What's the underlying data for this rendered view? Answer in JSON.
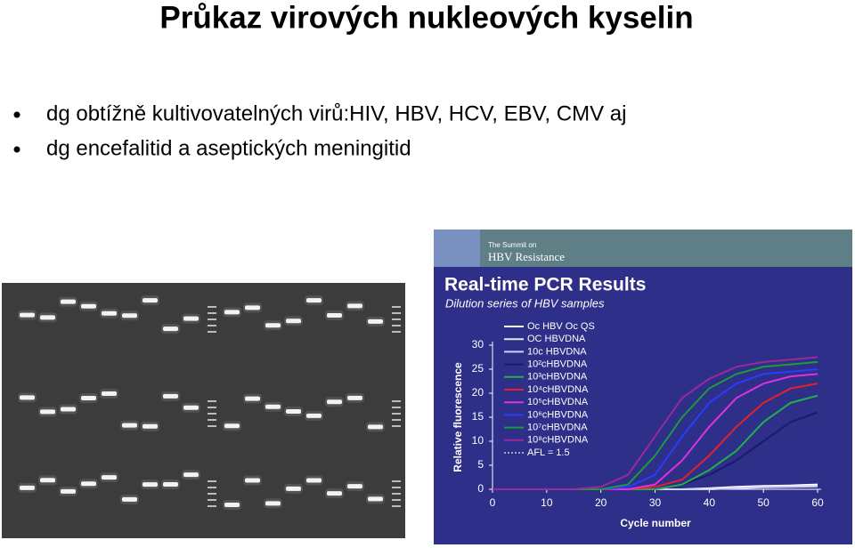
{
  "slide": {
    "title": "Průkaz virových nukleových kyselin",
    "bullets": [
      "dg obtížně kultivovatelných virů:HIV, HBV, HCV, EBV, CMV aj",
      "dg encefalitid a aseptických meningitid"
    ]
  },
  "banner": {
    "line1": "The Summit on",
    "line2": "HBV Resistance"
  },
  "chart_data": {
    "type": "line",
    "title": "Real-time PCR Results",
    "subtitle": "Dilution series of HBV samples",
    "x_label": "Cycle number",
    "y_label": "Relative fluorescence",
    "x": [
      0,
      5,
      10,
      15,
      20,
      25,
      30,
      35,
      40,
      45,
      50,
      55,
      60
    ],
    "xlim": [
      0,
      60
    ],
    "xticks": [
      0,
      10,
      20,
      30,
      40,
      50,
      60
    ],
    "ylim": [
      0,
      30
    ],
    "yticks": [
      0,
      5,
      10,
      15,
      20,
      25,
      30
    ],
    "background": "#2d2f88",
    "series": [
      {
        "name": "Oc HBV Oc QS",
        "color": "#ffffff",
        "values": [
          0,
          0,
          0,
          0,
          0,
          0,
          0,
          0,
          0.2,
          0.5,
          0.7,
          0.8,
          1
        ]
      },
      {
        "name": "OC HBVDNA",
        "color": "#e8e8e8",
        "values": [
          0,
          0,
          0,
          0,
          0,
          0,
          0,
          0,
          0,
          0.3,
          0.5,
          0.6,
          0.8
        ]
      },
      {
        "name": "10c HBVDNA",
        "color": "#d0d0ff",
        "values": [
          0,
          0,
          0,
          0,
          0,
          0,
          0,
          0,
          0,
          0.2,
          0.4,
          0.5,
          0.6
        ]
      },
      {
        "name": "10²cHBVDNA",
        "color": "#1a1a6e",
        "values": [
          0,
          0,
          0,
          0,
          0,
          0,
          0,
          1,
          3,
          6,
          10,
          14,
          16
        ]
      },
      {
        "name": "10³cHBVDNA",
        "color": "#22b04a",
        "values": [
          0,
          0,
          0,
          0,
          0,
          0,
          0,
          1,
          4,
          8,
          14,
          18,
          19.5
        ]
      },
      {
        "name": "10⁴cHBVDNA",
        "color": "#e8202a",
        "values": [
          0,
          0,
          0,
          0,
          0,
          0,
          0.5,
          2,
          7,
          13,
          18,
          21,
          22
        ]
      },
      {
        "name": "10⁵cHBVDNA",
        "color": "#e030e0",
        "values": [
          0,
          0,
          0,
          0,
          0,
          0,
          1,
          6,
          13,
          19,
          22,
          23.5,
          24
        ]
      },
      {
        "name": "10⁶cHBVDNA",
        "color": "#2a3cff",
        "values": [
          0,
          0,
          0,
          0,
          0,
          0.5,
          3,
          11,
          18,
          22,
          24,
          24.5,
          25
        ]
      },
      {
        "name": "10⁷cHBVDNA",
        "color": "#1f9a3a",
        "values": [
          0,
          0,
          0,
          0,
          0,
          1,
          7,
          15,
          21,
          24,
          25.5,
          26,
          26.5
        ]
      },
      {
        "name": "10⁸cHBVDNA",
        "color": "#9a2a9a",
        "values": [
          0,
          0,
          0,
          0,
          0.5,
          3,
          11,
          19,
          23,
          25.5,
          26.5,
          27,
          27.5
        ]
      }
    ],
    "legend_note": "AFL = 1.5"
  }
}
